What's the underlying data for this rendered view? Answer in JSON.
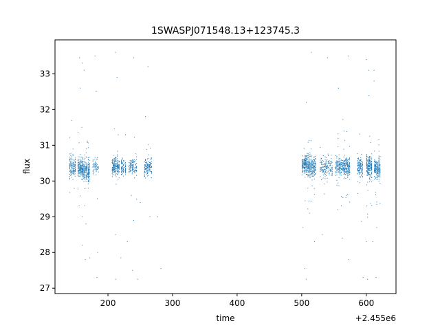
{
  "chart_data": {
    "type": "scatter",
    "title": "1SWASPJ071548.13+123745.3",
    "xlabel": "time",
    "ylabel": "flux",
    "x_offset_label": "+2.455e6",
    "xlim": [
      118,
      646
    ],
    "ylim": [
      26.85,
      33.95
    ],
    "x_ticks": [
      200,
      300,
      400,
      500,
      600
    ],
    "x_tick_labels": [
      "200",
      "300",
      "400",
      "500",
      "600"
    ],
    "y_ticks": [
      27,
      28,
      29,
      30,
      31,
      32,
      33
    ],
    "y_tick_labels": [
      "27",
      "28",
      "29",
      "30",
      "31",
      "32",
      "33"
    ],
    "grid": false,
    "legend": "none",
    "marker_color": "#1f77b4",
    "series": [
      {
        "clusters": [
          {
            "x_range": [
              140,
              150
            ],
            "y_center": 30.4,
            "y_spread": 0.35,
            "n": 160
          },
          {
            "x_range": [
              153,
              162
            ],
            "y_center": 30.35,
            "y_spread": 0.35,
            "n": 200
          },
          {
            "x_range": [
              162,
              172
            ],
            "y_center": 30.3,
            "y_spread": 0.4,
            "n": 220
          },
          {
            "x_range": [
              176,
              186
            ],
            "y_center": 30.4,
            "y_spread": 0.3,
            "n": 60
          },
          {
            "x_range": [
              206,
              218
            ],
            "y_center": 30.4,
            "y_spread": 0.3,
            "n": 220
          },
          {
            "x_range": [
              220,
              228
            ],
            "y_center": 30.4,
            "y_spread": 0.3,
            "n": 90
          },
          {
            "x_range": [
              232,
              245
            ],
            "y_center": 30.4,
            "y_spread": 0.3,
            "n": 120
          },
          {
            "x_range": [
              256,
              268
            ],
            "y_center": 30.4,
            "y_spread": 0.3,
            "n": 140
          },
          {
            "x_range": [
              500,
              512
            ],
            "y_center": 30.45,
            "y_spread": 0.35,
            "n": 260
          },
          {
            "x_range": [
              512,
              522
            ],
            "y_center": 30.4,
            "y_spread": 0.35,
            "n": 200
          },
          {
            "x_range": [
              528,
              548
            ],
            "y_center": 30.4,
            "y_spread": 0.35,
            "n": 160
          },
          {
            "x_range": [
              552,
              562
            ],
            "y_center": 30.4,
            "y_spread": 0.3,
            "n": 150
          },
          {
            "x_range": [
              563,
              575
            ],
            "y_center": 30.4,
            "y_spread": 0.35,
            "n": 220
          },
          {
            "x_range": [
              586,
              595
            ],
            "y_center": 30.4,
            "y_spread": 0.35,
            "n": 140
          },
          {
            "x_range": [
              600,
              609
            ],
            "y_center": 30.4,
            "y_spread": 0.4,
            "n": 220
          },
          {
            "x_range": [
              612,
              622
            ],
            "y_center": 30.35,
            "y_spread": 0.35,
            "n": 220
          }
        ],
        "outliers": [
          {
            "x": 156,
            "y": 33.45
          },
          {
            "x": 160,
            "y": 33.3
          },
          {
            "x": 163,
            "y": 33.1
          },
          {
            "x": 180,
            "y": 33.5
          },
          {
            "x": 212,
            "y": 33.6
          },
          {
            "x": 214,
            "y": 32.9
          },
          {
            "x": 240,
            "y": 33.45
          },
          {
            "x": 262,
            "y": 33.2
          },
          {
            "x": 515,
            "y": 33.6
          },
          {
            "x": 540,
            "y": 33.45
          },
          {
            "x": 572,
            "y": 33.5
          },
          {
            "x": 600,
            "y": 33.4
          },
          {
            "x": 604,
            "y": 33.1
          },
          {
            "x": 612,
            "y": 32.8
          },
          {
            "x": 612,
            "y": 33.1
          },
          {
            "x": 557,
            "y": 32.6
          },
          {
            "x": 507,
            "y": 32.2
          },
          {
            "x": 604,
            "y": 32.4
          },
          {
            "x": 182,
            "y": 32.5
          },
          {
            "x": 157,
            "y": 32.6
          },
          {
            "x": 258,
            "y": 31.8
          },
          {
            "x": 160,
            "y": 29.0
          },
          {
            "x": 166,
            "y": 28.8
          },
          {
            "x": 212,
            "y": 28.5
          },
          {
            "x": 230,
            "y": 28.3
          },
          {
            "x": 240,
            "y": 28.9
          },
          {
            "x": 250,
            "y": 29.4
          },
          {
            "x": 265,
            "y": 29.0
          },
          {
            "x": 277,
            "y": 29.0
          },
          {
            "x": 184,
            "y": 28.0
          },
          {
            "x": 160,
            "y": 28.2
          },
          {
            "x": 165,
            "y": 27.8
          },
          {
            "x": 172,
            "y": 27.85
          },
          {
            "x": 220,
            "y": 27.85
          },
          {
            "x": 238,
            "y": 27.5
          },
          {
            "x": 246,
            "y": 27.25
          },
          {
            "x": 282,
            "y": 27.55
          },
          {
            "x": 212,
            "y": 27.25
          },
          {
            "x": 183,
            "y": 27.3
          },
          {
            "x": 502,
            "y": 28.7
          },
          {
            "x": 507,
            "y": 27.25
          },
          {
            "x": 505,
            "y": 27.55
          },
          {
            "x": 512,
            "y": 29.1
          },
          {
            "x": 520,
            "y": 28.3
          },
          {
            "x": 532,
            "y": 28.5
          },
          {
            "x": 556,
            "y": 29.2
          },
          {
            "x": 563,
            "y": 28.4
          },
          {
            "x": 573,
            "y": 27.8
          },
          {
            "x": 595,
            "y": 27.3
          },
          {
            "x": 600,
            "y": 28.3
          },
          {
            "x": 602,
            "y": 27.25
          },
          {
            "x": 610,
            "y": 28.3
          },
          {
            "x": 615,
            "y": 27.3
          },
          {
            "x": 616,
            "y": 28.7
          }
        ]
      }
    ]
  }
}
